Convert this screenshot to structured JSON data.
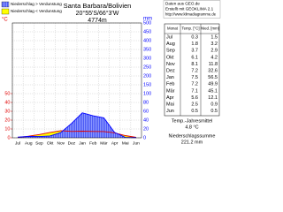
{
  "chart_data": {
    "type": "climate",
    "title": "Santa Barbara/Bolivien",
    "subtitle": "20°55'S/66°3'W",
    "elevation": "4774m",
    "source": [
      "Daten aus GEO.de",
      "Erstellt mit GEOKLIMA 2.1",
      "http://www.klimadiagramme.de"
    ],
    "area_legend": [
      {
        "label": "Niederschlag > Verdunstung",
        "color": "#5a6cff"
      },
      {
        "label": "Niederschlag < Verdunstung",
        "color": "#ffff00"
      }
    ],
    "categories": [
      "Jul",
      "Aug",
      "Sep",
      "Okt",
      "Nov",
      "Dez",
      "Jan",
      "Feb",
      "Mär",
      "Apr",
      "Mai",
      "Jun"
    ],
    "series": [
      {
        "name": "Temp.",
        "color": "#e00000",
        "values": [
          0.3,
          1.8,
          3.7,
          6.1,
          8.1,
          7.2,
          7.5,
          7.2,
          7.1,
          5.6,
          2.5,
          0.5
        ]
      },
      {
        "name": "Nied.",
        "color": "#0000ff",
        "axis": "y2",
        "values": [
          1.5,
          3.2,
          2.9,
          4.2,
          11.8,
          32.6,
          56.5,
          49.9,
          45.1,
          12.1,
          0.9,
          0.5
        ]
      }
    ],
    "ylabel": "°C",
    "y2label": "mm",
    "ylim": [
      0,
      50
    ],
    "yticks": [
      0,
      10,
      20,
      30,
      40,
      50
    ],
    "y2lim": [
      0,
      500
    ],
    "y2ticks": [
      500,
      450,
      400,
      350,
      300,
      250,
      200,
      150,
      100,
      80,
      60,
      40,
      20,
      0
    ],
    "grid": true,
    "table_header": [
      "Monat",
      "Temp. [°C]",
      "Nied. [mm]"
    ],
    "annual_mean_label": "Temp.-Jahresmittel",
    "annual_mean": "4.8 °C",
    "annual_total_label": "Niederschlagssumme",
    "annual_total": "221.2 mm"
  }
}
